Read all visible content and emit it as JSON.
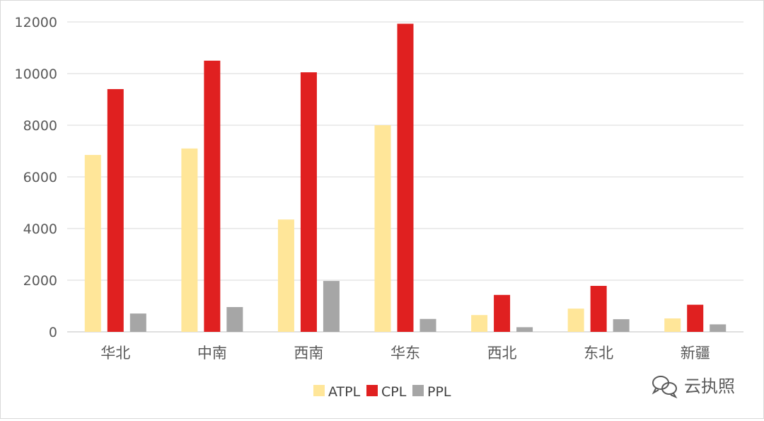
{
  "chart_data": {
    "type": "bar",
    "categories": [
      "华北",
      "中南",
      "西南",
      "华东",
      "西北",
      "东北",
      "新疆"
    ],
    "series": [
      {
        "name": "ATPL",
        "color": "#ffe699",
        "values": [
          6850,
          7100,
          4350,
          8000,
          650,
          900,
          520
        ]
      },
      {
        "name": "CPL",
        "color": "#e02020",
        "values": [
          9400,
          10500,
          10050,
          11930,
          1430,
          1780,
          1050
        ]
      },
      {
        "name": "PPL",
        "color": "#a6a6a6",
        "values": [
          710,
          960,
          1970,
          500,
          180,
          490,
          290
        ]
      }
    ],
    "ylim": [
      0,
      12000
    ],
    "yticks": [
      0,
      2000,
      4000,
      6000,
      8000,
      10000,
      12000
    ],
    "grid": true,
    "legend_position": "bottom-center"
  },
  "watermark": {
    "icon": "wechat-icon",
    "text": "云执照"
  }
}
